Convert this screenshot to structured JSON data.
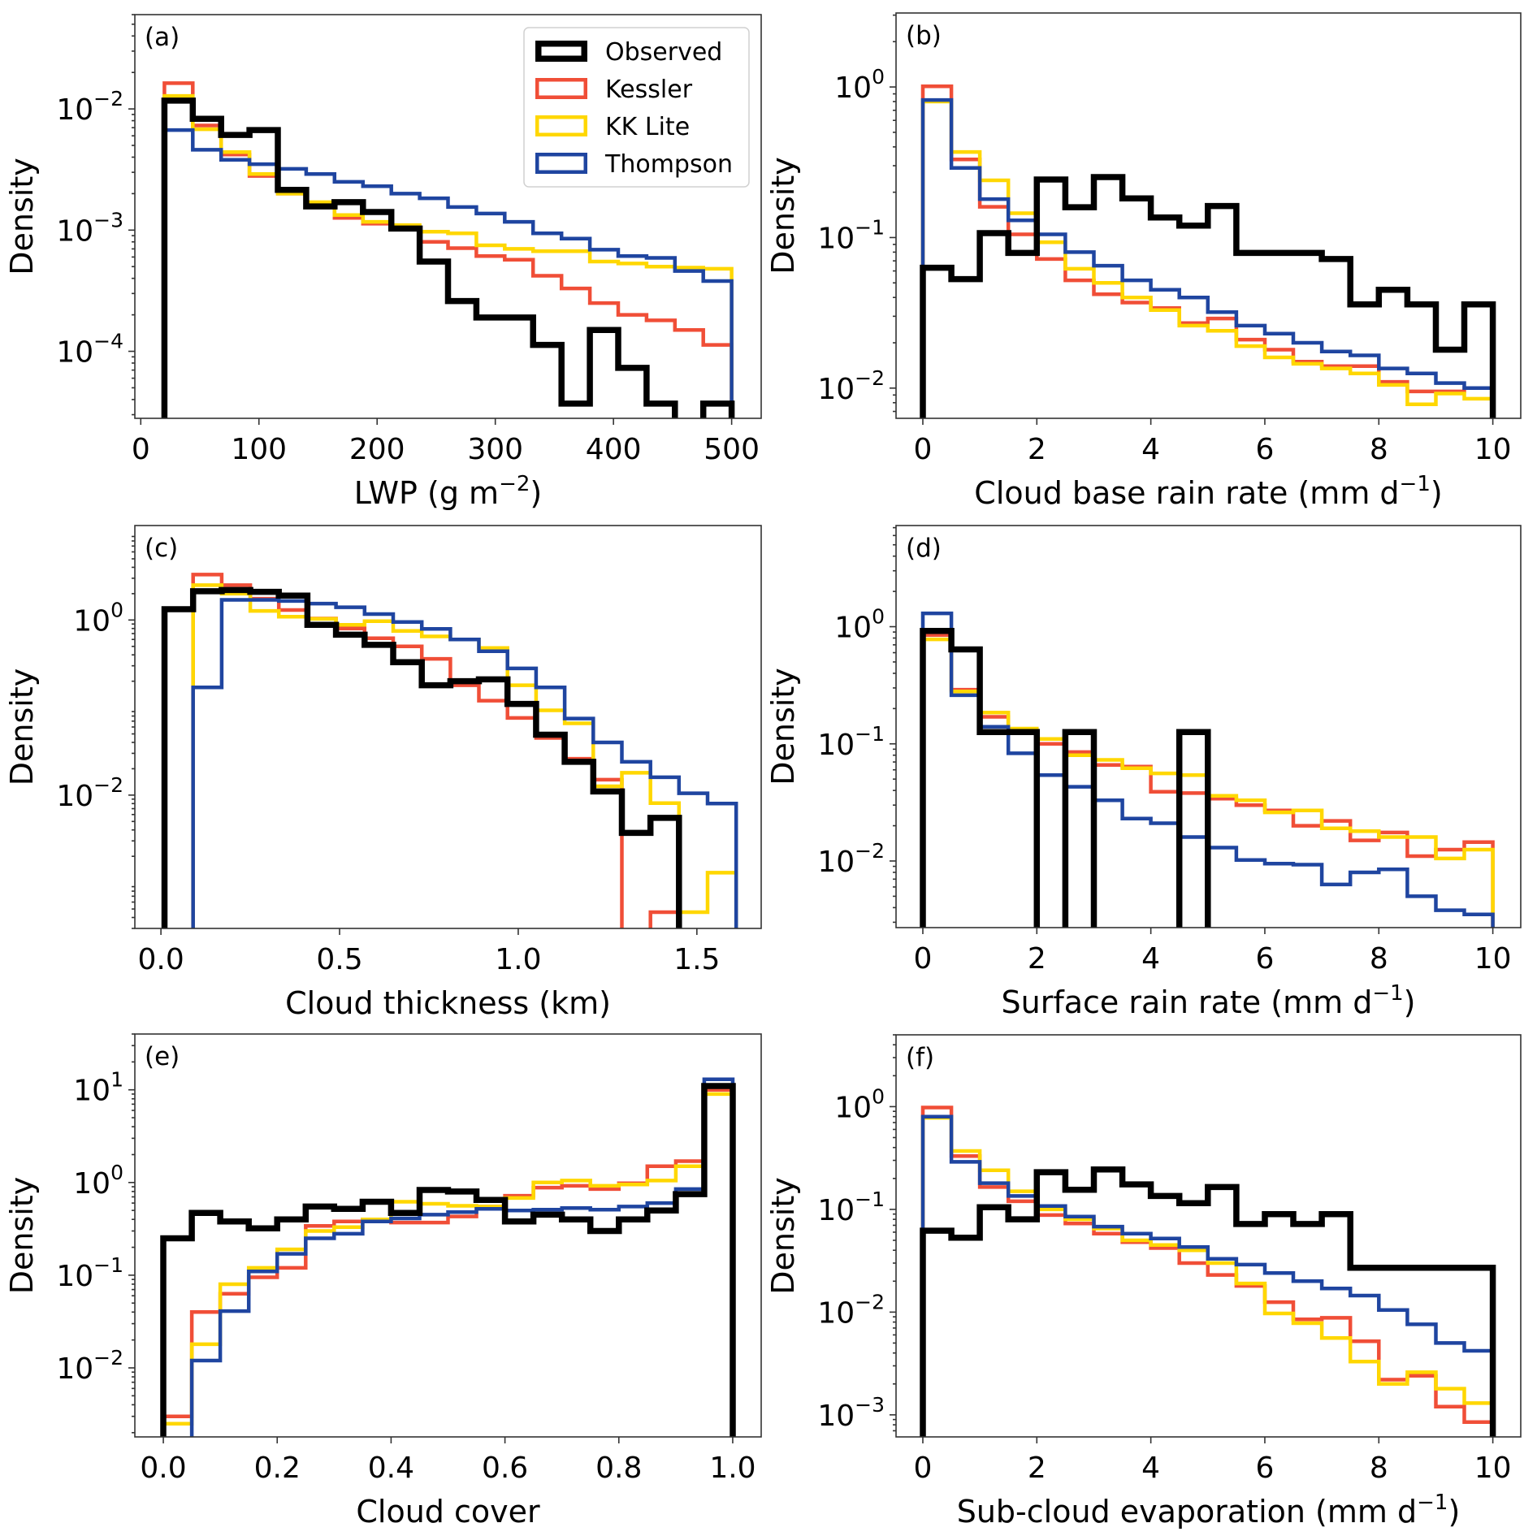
{
  "figure": {
    "series_styles": [
      {
        "name": "Observed",
        "color": "#000000",
        "weight": "thick"
      },
      {
        "name": "Kessler",
        "color": "#F04E37",
        "weight": "normal"
      },
      {
        "name": "KK Lite",
        "color": "#FFD700",
        "weight": "normal"
      },
      {
        "name": "Thompson",
        "color": "#1F45A0",
        "weight": "normal"
      }
    ]
  },
  "chart_data": [
    {
      "type": "histogram-step",
      "panel_label": "(a)",
      "xlabel": "LWP (g m^-2)",
      "xlabel_base": "LWP (g m",
      "xlabel_sup": "−2",
      "xlabel_tail": ")",
      "ylabel": "Density",
      "yscale": "log",
      "xlim": [
        -5,
        525
      ],
      "ylim": [
        2.8e-05,
        0.06
      ],
      "xticks": [
        0,
        100,
        200,
        300,
        400,
        500
      ],
      "xtick_labels": [
        "0",
        "100",
        "200",
        "300",
        "400",
        "500"
      ],
      "yticks": [
        -2,
        -3,
        -4
      ],
      "ytick_labels": [
        "10−2",
        "10−3",
        "10−4"
      ],
      "legend": {
        "placement": "top-right",
        "entries": [
          "Observed",
          "Kessler",
          "KK Lite",
          "Thompson"
        ]
      },
      "bin_edges_start": 20,
      "bin_width": 24,
      "series": [
        {
          "name": "Observed",
          "values": [
            0.0117,
            0.0083,
            0.0061,
            0.0067,
            0.00215,
            0.00157,
            0.0017,
            0.00141,
            0.00103,
            0.00055,
            0.00026,
            0.00019,
            0.00019,
            0.000113,
            3.7e-05,
            0.00015,
            7.3e-05,
            3.7e-05,
            0,
            3.7e-05
          ]
        },
        {
          "name": "Kessler",
          "values": [
            0.0163,
            0.0073,
            0.0042,
            0.0028,
            0.002,
            0.00162,
            0.00126,
            0.00113,
            0.00103,
            0.0008,
            0.00071,
            0.00061,
            0.00057,
            0.00042,
            0.00033,
            0.00025,
            0.0002,
            0.00018,
            0.00015,
            0.000113
          ]
        },
        {
          "name": "KK Lite",
          "values": [
            0.0128,
            0.0068,
            0.0044,
            0.0029,
            0.002,
            0.0017,
            0.00133,
            0.00117,
            0.0011,
            0.00097,
            0.00094,
            0.00075,
            0.0007,
            0.00067,
            0.00067,
            0.00055,
            0.00053,
            0.0005,
            0.00049,
            0.00048
          ]
        },
        {
          "name": "Thompson",
          "values": [
            0.0067,
            0.0046,
            0.0038,
            0.0035,
            0.0032,
            0.0029,
            0.0025,
            0.0023,
            0.002,
            0.00183,
            0.00155,
            0.00137,
            0.00117,
            0.00094,
            0.00085,
            0.00069,
            0.00061,
            0.00059,
            0.00046,
            0.00038
          ]
        }
      ]
    },
    {
      "type": "histogram-step",
      "panel_label": "(b)",
      "xlabel": "Cloud base rain rate (mm d^-1)",
      "xlabel_base": "Cloud base rain rate (mm d",
      "xlabel_sup": "−1",
      "xlabel_tail": ")",
      "ylabel": "Density",
      "yscale": "log",
      "xlim": [
        -0.47,
        10.49
      ],
      "ylim": [
        0.0063,
        3.1
      ],
      "xticks": [
        0,
        2,
        4,
        6,
        8,
        10
      ],
      "xtick_labels": [
        "0",
        "2",
        "4",
        "6",
        "8",
        "10"
      ],
      "yticks": [
        0,
        -1,
        -2
      ],
      "ytick_labels": [
        "10⁰",
        "10−1",
        "10−2"
      ],
      "bin_edges_start": 0,
      "bin_width": 0.5,
      "series": [
        {
          "name": "Observed",
          "values": [
            0.063,
            0.053,
            0.107,
            0.079,
            0.243,
            0.159,
            0.252,
            0.182,
            0.136,
            0.12,
            0.162,
            0.079,
            0.079,
            0.079,
            0.072,
            0.036,
            0.045,
            0.036,
            0.018,
            0.036
          ]
        },
        {
          "name": "Kessler",
          "values": [
            1.01,
            0.33,
            0.16,
            0.105,
            0.072,
            0.052,
            0.042,
            0.037,
            0.034,
            0.027,
            0.029,
            0.021,
            0.018,
            0.015,
            0.014,
            0.014,
            0.011,
            0.0095,
            0.0095,
            0.01
          ]
        },
        {
          "name": "KK Lite",
          "values": [
            0.8,
            0.37,
            0.24,
            0.145,
            0.093,
            0.062,
            0.05,
            0.04,
            0.033,
            0.026,
            0.024,
            0.019,
            0.016,
            0.0145,
            0.0135,
            0.0125,
            0.0105,
            0.0078,
            0.0092,
            0.0085
          ]
        },
        {
          "name": "Thompson",
          "values": [
            0.82,
            0.29,
            0.18,
            0.13,
            0.105,
            0.08,
            0.065,
            0.052,
            0.045,
            0.04,
            0.032,
            0.026,
            0.023,
            0.02,
            0.0175,
            0.0165,
            0.0135,
            0.0125,
            0.0108,
            0.01
          ]
        }
      ]
    },
    {
      "type": "histogram-step",
      "panel_label": "(c)",
      "xlabel": "Cloud thickness (km)",
      "xlabel_base": "Cloud thickness (km)",
      "xlabel_sup": "",
      "xlabel_tail": "",
      "ylabel": "Density",
      "yscale": "log",
      "xlim": [
        -0.073,
        1.68
      ],
      "ylim": [
        0.0003,
        12
      ],
      "xticks": [
        0.0,
        0.5,
        1.0,
        1.5
      ],
      "xtick_labels": [
        "0.0",
        "0.5",
        "1.0",
        "1.5"
      ],
      "yticks": [
        0,
        -2
      ],
      "ytick_labels": [
        "10⁰",
        "10−2"
      ],
      "bin_edges_start": 0.01,
      "bin_width": 0.08,
      "series": [
        {
          "name": "Observed",
          "values": [
            1.33,
            2.13,
            2.2,
            2.1,
            1.9,
            0.88,
            0.68,
            0.52,
            0.33,
            0.18,
            0.2,
            0.21,
            0.11,
            0.049,
            0.024,
            0.011,
            0.0037,
            0.0055,
            0,
            0
          ]
        },
        {
          "name": "Kessler",
          "values": [
            0,
            3.3,
            2.5,
            1.75,
            1.3,
            1.04,
            0.8,
            0.62,
            0.5,
            0.36,
            0.18,
            0.12,
            0.076,
            0.045,
            0.026,
            0.015,
            0,
            0.00046,
            0,
            0
          ]
        },
        {
          "name": "KK Lite",
          "values": [
            0,
            2.5,
            2.0,
            1.27,
            1.09,
            1.03,
            0.88,
            0.97,
            0.75,
            0.65,
            0.6,
            0.48,
            0.18,
            0.093,
            0.066,
            0.0126,
            0.018,
            0.0081,
            0.00046,
            0.0013
          ]
        },
        {
          "name": "Thompson",
          "values": [
            0,
            0.17,
            1.7,
            1.7,
            1.65,
            1.54,
            1.4,
            1.17,
            0.95,
            0.79,
            0.6,
            0.44,
            0.28,
            0.17,
            0.075,
            0.04,
            0.024,
            0.016,
            0.0105,
            0.008
          ]
        }
      ]
    },
    {
      "type": "histogram-step",
      "panel_label": "(d)",
      "xlabel": "Surface rain rate (mm d^-1)",
      "xlabel_base": "Surface rain rate (mm d",
      "xlabel_sup": "−1",
      "xlabel_tail": ")",
      "ylabel": "Density",
      "yscale": "log",
      "xlim": [
        -0.47,
        10.49
      ],
      "ylim": [
        0.0027,
        7.3
      ],
      "xticks": [
        0,
        2,
        4,
        6,
        8,
        10
      ],
      "xtick_labels": [
        "0",
        "2",
        "4",
        "6",
        "8",
        "10"
      ],
      "yticks": [
        0,
        -1,
        -2
      ],
      "ytick_labels": [
        "10⁰",
        "10−1",
        "10−2"
      ],
      "bin_edges_start": 0,
      "bin_width": 0.5,
      "series": [
        {
          "name": "Observed",
          "values": [
            0.92,
            0.64,
            0.126,
            0.126,
            0,
            0.126,
            0,
            0,
            0,
            0.126,
            0,
            0,
            0,
            0,
            0,
            0,
            0,
            0,
            0,
            0
          ]
        },
        {
          "name": "Kessler",
          "values": [
            0.85,
            0.29,
            0.17,
            0.13,
            0.1,
            0.085,
            0.066,
            0.064,
            0.039,
            0.038,
            0.034,
            0.03,
            0.027,
            0.02,
            0.022,
            0.015,
            0.0175,
            0.011,
            0.0125,
            0.0145
          ]
        },
        {
          "name": "KK Lite",
          "values": [
            0.78,
            0.28,
            0.185,
            0.135,
            0.11,
            0.08,
            0.073,
            0.062,
            0.056,
            0.054,
            0.036,
            0.033,
            0.026,
            0.027,
            0.019,
            0.018,
            0.016,
            0.016,
            0.0105,
            0.0125
          ]
        },
        {
          "name": "Thompson",
          "values": [
            1.3,
            0.26,
            0.14,
            0.083,
            0.054,
            0.043,
            0.033,
            0.023,
            0.021,
            0.016,
            0.013,
            0.0102,
            0.0095,
            0.0093,
            0.0063,
            0.008,
            0.0085,
            0.005,
            0.0038,
            0.0035
          ]
        }
      ]
    },
    {
      "type": "histogram-step",
      "panel_label": "(e)",
      "xlabel": "Cloud cover",
      "xlabel_base": "Cloud cover",
      "xlabel_sup": "",
      "xlabel_tail": "",
      "ylabel": "Density",
      "yscale": "log",
      "xlim": [
        -0.05,
        1.05
      ],
      "ylim": [
        0.0018,
        40
      ],
      "xticks": [
        0.0,
        0.2,
        0.4,
        0.6,
        0.8,
        1.0
      ],
      "xtick_labels": [
        "0.0",
        "0.2",
        "0.4",
        "0.6",
        "0.8",
        "1.0"
      ],
      "yticks": [
        1,
        0,
        -1,
        -2
      ],
      "ytick_labels": [
        "10¹",
        "10⁰",
        "10−1",
        "10−2"
      ],
      "bin_edges_start": 0,
      "bin_width": 0.05,
      "series": [
        {
          "name": "Observed",
          "values": [
            0.25,
            0.47,
            0.38,
            0.32,
            0.4,
            0.55,
            0.52,
            0.62,
            0.47,
            0.83,
            0.8,
            0.65,
            0.38,
            0.45,
            0.4,
            0.3,
            0.4,
            0.5,
            0.75,
            11.0
          ]
        },
        {
          "name": "Kessler",
          "values": [
            0.003,
            0.04,
            0.063,
            0.095,
            0.12,
            0.34,
            0.38,
            0.4,
            0.37,
            0.37,
            0.43,
            0.55,
            0.72,
            0.88,
            0.92,
            0.85,
            0.98,
            1.5,
            1.7,
            10.0
          ]
        },
        {
          "name": "KK Lite",
          "values": [
            0.0025,
            0.018,
            0.08,
            0.12,
            0.19,
            0.3,
            0.33,
            0.4,
            0.62,
            0.59,
            0.56,
            0.55,
            0.68,
            1.0,
            1.05,
            0.92,
            0.95,
            1.05,
            1.5,
            9.0
          ]
        },
        {
          "name": "Thompson",
          "values": [
            0,
            0.012,
            0.041,
            0.11,
            0.17,
            0.25,
            0.28,
            0.38,
            0.41,
            0.45,
            0.48,
            0.52,
            0.5,
            0.51,
            0.53,
            0.51,
            0.55,
            0.6,
            0.85,
            13.0
          ]
        }
      ]
    },
    {
      "type": "histogram-step",
      "panel_label": "(f)",
      "xlabel": "Sub-cloud evaporation (mm d^-1)",
      "xlabel_base": "Sub-cloud evaporation (mm d",
      "xlabel_sup": "−1",
      "xlabel_tail": ")",
      "ylabel": "Density",
      "yscale": "log",
      "xlim": [
        -0.47,
        10.49
      ],
      "ylim": [
        0.00061,
        5.0
      ],
      "xticks": [
        0,
        2,
        4,
        6,
        8,
        10
      ],
      "xtick_labels": [
        "0",
        "2",
        "4",
        "6",
        "8",
        "10"
      ],
      "yticks": [
        0,
        -1,
        -2,
        -3
      ],
      "ytick_labels": [
        "10⁰",
        "10−1",
        "10−2",
        "10−3"
      ],
      "bin_edges_start": 0,
      "bin_width": 0.5,
      "series": [
        {
          "name": "Observed",
          "values": [
            0.062,
            0.053,
            0.105,
            0.08,
            0.23,
            0.155,
            0.245,
            0.175,
            0.135,
            0.115,
            0.165,
            0.072,
            0.09,
            0.072,
            0.09,
            0.027,
            0.027,
            0.027,
            0.027,
            0.027
          ]
        },
        {
          "name": "Kessler",
          "values": [
            0.98,
            0.33,
            0.165,
            0.12,
            0.088,
            0.073,
            0.058,
            0.048,
            0.042,
            0.03,
            0.023,
            0.018,
            0.0125,
            0.0085,
            0.0088,
            0.0052,
            0.0022,
            0.0024,
            0.0012,
            0.00085
          ]
        },
        {
          "name": "KK Lite",
          "values": [
            0.78,
            0.37,
            0.24,
            0.15,
            0.1,
            0.08,
            0.065,
            0.05,
            0.045,
            0.04,
            0.03,
            0.019,
            0.0097,
            0.0078,
            0.0056,
            0.0033,
            0.002,
            0.0026,
            0.0018,
            0.0013
          ]
        },
        {
          "name": "Thompson",
          "values": [
            0.8,
            0.29,
            0.18,
            0.135,
            0.108,
            0.085,
            0.068,
            0.058,
            0.052,
            0.043,
            0.033,
            0.029,
            0.024,
            0.02,
            0.017,
            0.0145,
            0.0105,
            0.0076,
            0.005,
            0.0042
          ]
        }
      ]
    }
  ]
}
